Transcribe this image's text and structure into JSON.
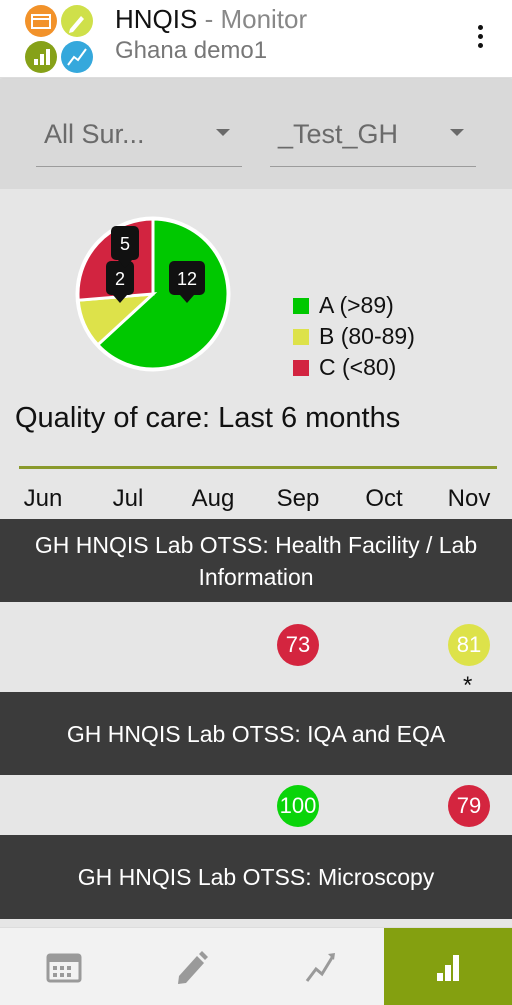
{
  "header": {
    "app_name": "HNQIS",
    "section": " - Monitor",
    "program": "Ghana demo1"
  },
  "filters": {
    "survey_select": "All Sur...",
    "org_select": "_Test_GH"
  },
  "chart_data": {
    "type": "pie",
    "title": "",
    "categories": [
      "A (>89)",
      "B (80-89)",
      "C (<80)"
    ],
    "values": [
      12,
      2,
      5
    ],
    "colors": [
      "#00c800",
      "#dde24a",
      "#d22440"
    ],
    "legend": "right"
  },
  "summary_title": "Quality of care: Last 6 months",
  "months": [
    "Jun",
    "Jul",
    "Aug",
    "Sep",
    "Oct",
    "Nov"
  ],
  "surveys": [
    {
      "name": "GH HNQIS Lab OTSS: Health Facility / Lab Information",
      "scores": [
        {
          "month_index": 3,
          "value": "73",
          "grade": "C"
        },
        {
          "month_index": 5,
          "value": "81",
          "grade": "B",
          "note": "*"
        }
      ]
    },
    {
      "name": "GH HNQIS Lab OTSS: IQA and EQA",
      "scores": [
        {
          "month_index": 3,
          "value": "100",
          "grade": "A"
        },
        {
          "month_index": 5,
          "value": "79",
          "grade": "C"
        }
      ]
    },
    {
      "name": "GH HNQIS Lab OTSS: Microscopy",
      "scores": []
    }
  ],
  "grade_colors": {
    "A": "#0ad40a",
    "B": "#dde24a",
    "C": "#d4253f"
  },
  "nav": {
    "tabs": [
      {
        "icon": "calendar-icon",
        "active": false
      },
      {
        "icon": "pencil-icon",
        "active": false
      },
      {
        "icon": "trend-icon",
        "active": false
      },
      {
        "icon": "bar-chart-icon",
        "active": true
      }
    ]
  }
}
